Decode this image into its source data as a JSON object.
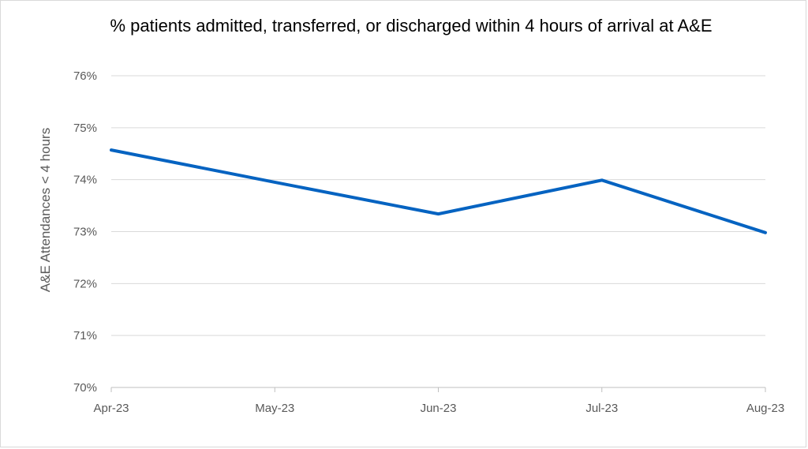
{
  "chart_data": {
    "type": "line",
    "title": "% patients admitted, transferred, or discharged within 4 hours of arrival at A&E",
    "ylabel": "A&E Attendances < 4 hours",
    "xlabel": "",
    "categories": [
      "Apr-23",
      "May-23",
      "Jun-23",
      "Jul-23",
      "Aug-23"
    ],
    "series": [
      {
        "values": [
          74.57,
          73.95,
          73.34,
          73.99,
          72.98
        ]
      }
    ],
    "ylim": [
      70,
      76
    ],
    "yticks": [
      "70%",
      "71%",
      "72%",
      "73%",
      "74%",
      "75%",
      "76%"
    ],
    "grid": true,
    "line_color": "#0563c1"
  }
}
